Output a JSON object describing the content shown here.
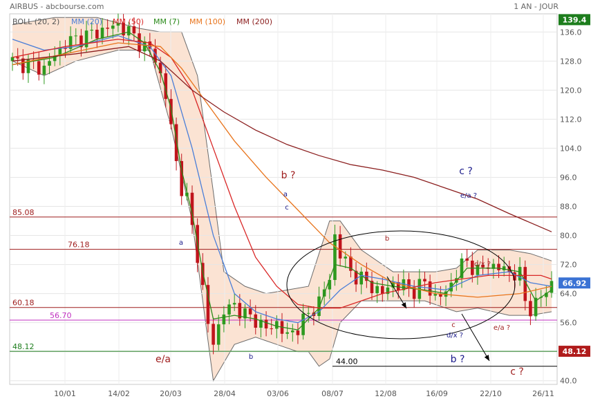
{
  "header": {
    "title": "AIRBUS - abcbourse.com",
    "period": "1 AN - JOUR"
  },
  "colors": {
    "candle_up": "#2e9a1f",
    "candle_down": "#c0141c",
    "boll_band": "#fbe3d3",
    "mm20": "#4a7ed8",
    "mm50": "#d92626",
    "mm7": "#2a8a1a",
    "mm100": "#e8741c",
    "mm200": "#8b1e1e",
    "fib_line": "#9e1b1b",
    "fib_5670": "#c02fc0",
    "fib_4812": "#1d7d1d",
    "price_box_high": "#1d7d1d",
    "price_box_current": "#3a72d4",
    "price_box_low": "#b01c1c",
    "text_red": "#9e1b1b",
    "text_blue": "#1a1a8a"
  },
  "legend": [
    {
      "label": "BOLL (20, 2)",
      "color": "#555555"
    },
    {
      "label": "MM (20)",
      "color": "#4a7ed8"
    },
    {
      "label": "MM (50)",
      "color": "#d92626"
    },
    {
      "label": "MM (7)",
      "color": "#2a8a1a"
    },
    {
      "label": "MM (100)",
      "color": "#e8741c"
    },
    {
      "label": "MM (200)",
      "color": "#8b1e1e"
    }
  ],
  "chart_data": {
    "type": "candlestick",
    "title": "AIRBUS - abcbourse.com",
    "period": "1 AN - JOUR",
    "ylim": [
      39,
      141
    ],
    "y_ticks": [
      136.0,
      128.0,
      120.0,
      112.0,
      104.0,
      96.0,
      88.0,
      80.0,
      72.0,
      64.0,
      56.0,
      48.0,
      40.0
    ],
    "x_ticks": [
      "10/01",
      "14/02",
      "20/03",
      "28/04",
      "03/06",
      "08/07",
      "12/08",
      "16/09",
      "22/10",
      "26/11"
    ],
    "price_labels": {
      "high": "139.4",
      "current": "66.92",
      "low": "48.12"
    },
    "horizontal_levels": [
      {
        "value": 85.08,
        "label": "85.08",
        "color_key": "fib_line"
      },
      {
        "value": 76.18,
        "label": "76.18",
        "color_key": "fib_line"
      },
      {
        "value": 60.18,
        "label": "60.18",
        "color_key": "fib_line"
      },
      {
        "value": 56.7,
        "label": "56.70",
        "color_key": "fib_5670"
      },
      {
        "value": 48.12,
        "label": "48.12",
        "color_key": "fib_4812"
      },
      {
        "value": 44.0,
        "label": "44.00",
        "color_key": "text"
      }
    ],
    "close_anchors": [
      [
        0,
        128
      ],
      [
        6,
        126
      ],
      [
        10,
        133
      ],
      [
        14,
        135
      ],
      [
        18,
        137
      ],
      [
        20,
        138
      ],
      [
        22,
        136
      ],
      [
        25,
        132
      ],
      [
        27,
        129
      ],
      [
        28,
        124
      ],
      [
        29,
        118
      ],
      [
        30,
        110
      ],
      [
        31,
        100
      ],
      [
        32,
        93
      ],
      [
        33,
        90
      ],
      [
        34,
        82
      ],
      [
        35,
        75
      ],
      [
        36,
        65
      ],
      [
        37,
        55
      ],
      [
        38,
        51
      ],
      [
        40,
        59
      ],
      [
        42,
        61
      ],
      [
        44,
        58
      ],
      [
        46,
        57
      ],
      [
        48,
        54
      ],
      [
        50,
        56
      ],
      [
        52,
        52
      ],
      [
        54,
        55
      ],
      [
        56,
        58
      ],
      [
        58,
        62
      ],
      [
        60,
        68
      ],
      [
        61,
        80
      ],
      [
        62,
        75
      ],
      [
        64,
        70
      ],
      [
        66,
        68
      ],
      [
        68,
        66
      ],
      [
        70,
        64
      ],
      [
        72,
        67
      ],
      [
        74,
        66
      ],
      [
        76,
        65
      ],
      [
        78,
        67
      ],
      [
        80,
        63
      ],
      [
        82,
        64
      ],
      [
        84,
        70
      ],
      [
        86,
        73
      ],
      [
        88,
        70
      ],
      [
        90,
        72
      ],
      [
        92,
        71
      ],
      [
        94,
        70
      ],
      [
        96,
        69
      ],
      [
        97,
        62
      ],
      [
        98,
        60
      ],
      [
        99,
        61
      ],
      [
        100,
        63
      ],
      [
        101,
        65
      ],
      [
        102,
        67
      ]
    ],
    "moving_averages": [
      {
        "name": "MM (7)",
        "color_key": "mm7",
        "points": [
          [
            0,
            127
          ],
          [
            8,
            129
          ],
          [
            16,
            134
          ],
          [
            22,
            136
          ],
          [
            25,
            133
          ],
          [
            28,
            125
          ],
          [
            30,
            115
          ],
          [
            32,
            98
          ],
          [
            34,
            86
          ],
          [
            36,
            70
          ],
          [
            38,
            57
          ],
          [
            42,
            58
          ],
          [
            46,
            57
          ],
          [
            50,
            55
          ],
          [
            54,
            54
          ],
          [
            58,
            60
          ],
          [
            61,
            72
          ],
          [
            64,
            71
          ],
          [
            68,
            67
          ],
          [
            72,
            66
          ],
          [
            78,
            65
          ],
          [
            82,
            64
          ],
          [
            86,
            71
          ],
          [
            92,
            71
          ],
          [
            96,
            70
          ],
          [
            99,
            62
          ],
          [
            102,
            65
          ]
        ]
      },
      {
        "name": "MM (20)",
        "color_key": "mm20",
        "points": [
          [
            0,
            134
          ],
          [
            6,
            131
          ],
          [
            12,
            132
          ],
          [
            20,
            135
          ],
          [
            26,
            132
          ],
          [
            30,
            124
          ],
          [
            34,
            104
          ],
          [
            38,
            80
          ],
          [
            42,
            64
          ],
          [
            46,
            59
          ],
          [
            50,
            57
          ],
          [
            54,
            56
          ],
          [
            58,
            59
          ],
          [
            62,
            65
          ],
          [
            66,
            69
          ],
          [
            70,
            68
          ],
          [
            76,
            66
          ],
          [
            82,
            65
          ],
          [
            88,
            69
          ],
          [
            94,
            70
          ],
          [
            98,
            67
          ],
          [
            102,
            66
          ]
        ]
      },
      {
        "name": "MM (50)",
        "color_key": "mm50",
        "points": [
          [
            0,
            129
          ],
          [
            10,
            132
          ],
          [
            20,
            134
          ],
          [
            26,
            133
          ],
          [
            30,
            129
          ],
          [
            34,
            120
          ],
          [
            38,
            104
          ],
          [
            42,
            88
          ],
          [
            46,
            74
          ],
          [
            50,
            66
          ],
          [
            54,
            61
          ],
          [
            58,
            60
          ],
          [
            62,
            60
          ],
          [
            70,
            64
          ],
          [
            80,
            67
          ],
          [
            90,
            69
          ],
          [
            100,
            69
          ],
          [
            102,
            68
          ]
        ]
      },
      {
        "name": "MM (100)",
        "color_key": "mm100",
        "points": [
          [
            0,
            127
          ],
          [
            10,
            130
          ],
          [
            20,
            133
          ],
          [
            28,
            132
          ],
          [
            32,
            126
          ],
          [
            36,
            118
          ],
          [
            42,
            106
          ],
          [
            48,
            96
          ],
          [
            54,
            87
          ],
          [
            60,
            78
          ],
          [
            66,
            72
          ],
          [
            72,
            67
          ],
          [
            80,
            64
          ],
          [
            88,
            63
          ],
          [
            96,
            64
          ],
          [
            102,
            66
          ]
        ]
      },
      {
        "name": "MM (200)",
        "color_key": "mm200",
        "points": [
          [
            0,
            128
          ],
          [
            12,
            130
          ],
          [
            22,
            132
          ],
          [
            28,
            128
          ],
          [
            34,
            120
          ],
          [
            40,
            114
          ],
          [
            46,
            109
          ],
          [
            52,
            105
          ],
          [
            58,
            102
          ],
          [
            64,
            99.5
          ],
          [
            70,
            98
          ],
          [
            76,
            96
          ],
          [
            82,
            93
          ],
          [
            88,
            90
          ],
          [
            94,
            86
          ],
          [
            102,
            81
          ]
        ]
      }
    ],
    "bollinger_upper": [
      [
        0,
        138
      ],
      [
        8,
        140
      ],
      [
        16,
        140
      ],
      [
        24,
        137
      ],
      [
        28,
        136
      ],
      [
        32,
        136
      ],
      [
        35,
        124
      ],
      [
        38,
        92
      ],
      [
        40,
        70
      ],
      [
        44,
        66
      ],
      [
        48,
        64
      ],
      [
        52,
        65
      ],
      [
        56,
        66
      ],
      [
        60,
        84
      ],
      [
        62,
        84
      ],
      [
        66,
        76
      ],
      [
        72,
        70
      ],
      [
        80,
        70
      ],
      [
        84,
        71
      ],
      [
        88,
        76
      ],
      [
        94,
        76
      ],
      [
        98,
        75
      ],
      [
        102,
        73
      ]
    ],
    "bollinger_lower": [
      [
        0,
        128
      ],
      [
        6,
        124
      ],
      [
        12,
        128
      ],
      [
        20,
        131
      ],
      [
        26,
        131
      ],
      [
        30,
        110
      ],
      [
        34,
        84
      ],
      [
        38,
        40
      ],
      [
        42,
        50
      ],
      [
        46,
        52
      ],
      [
        50,
        50
      ],
      [
        54,
        48
      ],
      [
        56,
        48
      ],
      [
        58,
        44
      ],
      [
        60,
        46
      ],
      [
        62,
        56
      ],
      [
        66,
        62
      ],
      [
        72,
        62
      ],
      [
        78,
        62
      ],
      [
        84,
        59
      ],
      [
        88,
        60
      ],
      [
        94,
        58
      ],
      [
        98,
        58
      ],
      [
        102,
        59
      ]
    ],
    "annotations": [
      {
        "text": "b ?",
        "color_key": "text_red",
        "large": true
      },
      {
        "text": "a",
        "color_key": "text_blue",
        "large": false
      },
      {
        "text": "c",
        "color_key": "text_blue",
        "large": false
      },
      {
        "text": "a",
        "color_key": "text_blue",
        "large": false
      },
      {
        "text": "b",
        "color_key": "text_blue",
        "large": false
      },
      {
        "text": "a",
        "color_key": "text_red",
        "large": false
      },
      {
        "text": "b",
        "color_key": "text_red",
        "large": false
      },
      {
        "text": "e/a",
        "color_key": "text_red",
        "large": true
      },
      {
        "text": "c ?",
        "color_key": "text_blue",
        "large": true
      },
      {
        "text": "e/a ?",
        "color_key": "text_blue",
        "large": false
      },
      {
        "text": "d/x ?",
        "color_key": "text_red",
        "large": false
      },
      {
        "text": "c",
        "color_key": "text_red",
        "large": false
      },
      {
        "text": "d/x ?",
        "color_key": "text_blue",
        "large": false
      },
      {
        "text": "e/a ?",
        "color_key": "text_red",
        "large": false
      },
      {
        "text": "b ?",
        "color_key": "text_blue",
        "large": true
      },
      {
        "text": "c ?",
        "color_key": "text_red",
        "large": true
      }
    ]
  }
}
